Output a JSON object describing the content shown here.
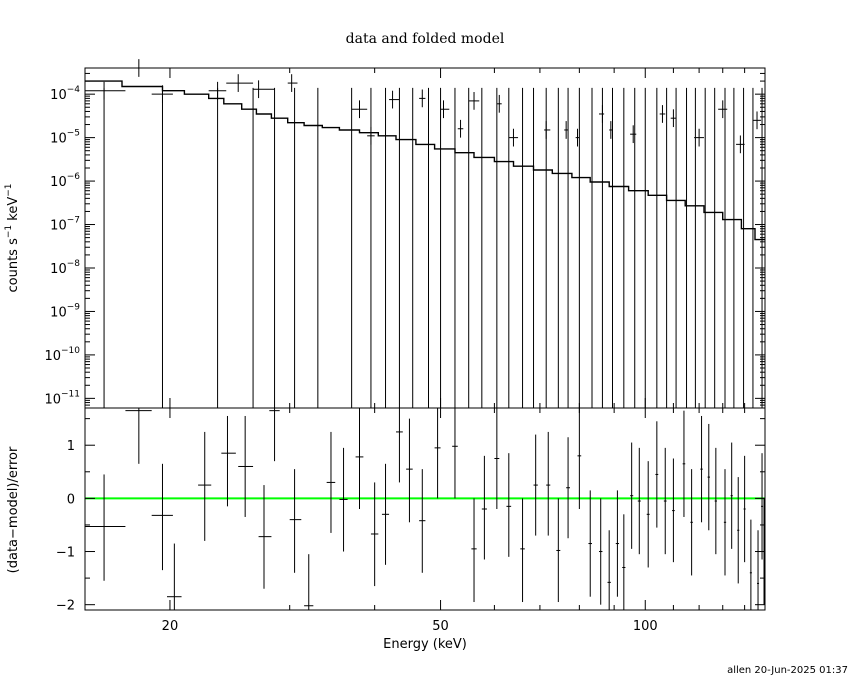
{
  "title": "data and folded model",
  "footer": "allen 20-Jun-2025 01:37",
  "chart_data": [
    {
      "type": "scatter",
      "panel": "top",
      "ylabel_main": "counts s",
      "ylabel_exp1": "−1",
      "ylabel_mid": " keV",
      "ylabel_exp2": "−1",
      "yscale": "log",
      "ylim": [
        6e-12,
        0.0004
      ],
      "xscale": "log",
      "xlim": [
        15,
        150
      ],
      "ytick_labels": [
        {
          "value": 1e-11,
          "mant": "10",
          "exp": "−11"
        },
        {
          "value": 1e-10,
          "mant": "10",
          "exp": "−10"
        },
        {
          "value": 1e-09,
          "mant": "10",
          "exp": "−9"
        },
        {
          "value": 1e-08,
          "mant": "10",
          "exp": "−8"
        },
        {
          "value": 1e-07,
          "mant": "10",
          "exp": "−7"
        },
        {
          "value": 1e-06,
          "mant": "10",
          "exp": "−6"
        },
        {
          "value": 1e-05,
          "mant": "10",
          "exp": "−5"
        },
        {
          "value": 0.0001,
          "mant": "10",
          "exp": "−4"
        }
      ],
      "data_points": [
        {
          "x": 16.0,
          "y": 0.00012,
          "xlo": 15.0,
          "xhi": 17.2
        },
        {
          "x": 18.0,
          "y": 0.0004,
          "xlo": 17.2,
          "xhi": 18.8
        },
        {
          "x": 19.5,
          "y": 0.0001,
          "xlo": 18.8,
          "xhi": 20.2
        },
        {
          "x": 23.5,
          "y": 0.00012,
          "xlo": 22.8,
          "xhi": 24.2
        },
        {
          "x": 25.2,
          "y": 0.00018,
          "xlo": 24.2,
          "xhi": 26.5
        },
        {
          "x": 27.0,
          "y": 0.00013,
          "xlo": 26.5,
          "xhi": 28.5
        },
        {
          "x": 30.2,
          "y": 0.00018,
          "xlo": 29.8,
          "xhi": 30.8
        },
        {
          "x": 38.0,
          "y": 4.5e-05,
          "xlo": 37.0,
          "xhi": 39.0
        },
        {
          "x": 39.5,
          "y": 1.1e-05,
          "xlo": 39.0,
          "xhi": 40.0
        },
        {
          "x": 42.5,
          "y": 7.5e-05,
          "xlo": 42.0,
          "xhi": 43.5
        },
        {
          "x": 47.0,
          "y": 8e-05,
          "xlo": 46.5,
          "xhi": 47.5
        },
        {
          "x": 50.5,
          "y": 4.5e-05,
          "xlo": 50.0,
          "xhi": 51.5
        },
        {
          "x": 53.5,
          "y": 1.6e-05,
          "xlo": 53.0,
          "xhi": 54.0
        },
        {
          "x": 56.0,
          "y": 7e-05,
          "xlo": 55.0,
          "xhi": 57.0
        },
        {
          "x": 61.0,
          "y": 6e-05,
          "xlo": 60.5,
          "xhi": 61.5
        },
        {
          "x": 64.0,
          "y": 1e-05,
          "xlo": 63.0,
          "xhi": 65.0
        },
        {
          "x": 71.5,
          "y": 1.5e-05,
          "xlo": 71.0,
          "xhi": 72.5
        },
        {
          "x": 76.5,
          "y": 1.5e-05,
          "xlo": 76.0,
          "xhi": 77.0
        },
        {
          "x": 79.5,
          "y": 1e-05,
          "xlo": 79.0,
          "xhi": 80.0
        },
        {
          "x": 86.5,
          "y": 3.5e-05,
          "xlo": 85.5,
          "xhi": 87.0
        },
        {
          "x": 89.0,
          "y": 1.5e-05,
          "xlo": 88.5,
          "xhi": 89.5
        },
        {
          "x": 96.0,
          "y": 1.2e-05,
          "xlo": 95.0,
          "xhi": 97.0
        },
        {
          "x": 106.0,
          "y": 3.5e-05,
          "xlo": 105.0,
          "xhi": 107.0
        },
        {
          "x": 110.0,
          "y": 2.8e-05,
          "xlo": 109.0,
          "xhi": 111.0
        },
        {
          "x": 120.0,
          "y": 1e-05,
          "xlo": 118.0,
          "xhi": 122.0
        },
        {
          "x": 130.0,
          "y": 4.5e-05,
          "xlo": 128.0,
          "xhi": 132.0
        },
        {
          "x": 138.0,
          "y": 7e-06,
          "xlo": 136.0,
          "xhi": 140.0
        },
        {
          "x": 146.0,
          "y": 2.5e-05,
          "xlo": 144.0,
          "xhi": 148.0
        }
      ],
      "error_bar_energies": [
        16.0,
        19.5,
        23.5,
        26.5,
        28.5,
        30.5,
        33.0,
        37.0,
        39.5,
        41.5,
        43.5,
        45.5,
        48.0,
        50.0,
        52.5,
        55.0,
        57.5,
        60.5,
        63.0,
        66.0,
        68.5,
        71.5,
        74.5,
        77.0,
        80.0,
        83.5,
        86.5,
        89.5,
        93.0,
        96.5,
        100.0,
        104.0,
        107.5,
        111.0,
        115.0,
        118.5,
        122.5,
        126.5,
        131.0,
        135.0,
        139.5,
        144.0,
        148.5
      ],
      "model_steps": [
        {
          "x0": 15.0,
          "x1": 17.0,
          "y": 0.0002
        },
        {
          "x0": 17.0,
          "x1": 19.5,
          "y": 0.00015
        },
        {
          "x0": 19.5,
          "x1": 21.0,
          "y": 0.00012
        },
        {
          "x0": 21.0,
          "x1": 22.8,
          "y": 0.0001
        },
        {
          "x0": 22.8,
          "x1": 24.0,
          "y": 8e-05
        },
        {
          "x0": 24.0,
          "x1": 25.5,
          "y": 6e-05
        },
        {
          "x0": 25.5,
          "x1": 26.8,
          "y": 4.5e-05
        },
        {
          "x0": 26.8,
          "x1": 28.2,
          "y": 3.5e-05
        },
        {
          "x0": 28.2,
          "x1": 29.8,
          "y": 2.8e-05
        },
        {
          "x0": 29.8,
          "x1": 31.5,
          "y": 2.2e-05
        },
        {
          "x0": 31.5,
          "x1": 33.5,
          "y": 1.9e-05
        },
        {
          "x0": 33.5,
          "x1": 35.5,
          "y": 1.7e-05
        },
        {
          "x0": 35.5,
          "x1": 38.0,
          "y": 1.5e-05
        },
        {
          "x0": 38.0,
          "x1": 40.5,
          "y": 1.3e-05
        },
        {
          "x0": 40.5,
          "x1": 43.0,
          "y": 1.1e-05
        },
        {
          "x0": 43.0,
          "x1": 46.0,
          "y": 9e-06
        },
        {
          "x0": 46.0,
          "x1": 49.0,
          "y": 7e-06
        },
        {
          "x0": 49.0,
          "x1": 52.5,
          "y": 5.5e-06
        },
        {
          "x0": 52.5,
          "x1": 56.0,
          "y": 4.5e-06
        },
        {
          "x0": 56.0,
          "x1": 60.0,
          "y": 3.5e-06
        },
        {
          "x0": 60.0,
          "x1": 64.0,
          "y": 2.8e-06
        },
        {
          "x0": 64.0,
          "x1": 68.5,
          "y": 2.2e-06
        },
        {
          "x0": 68.5,
          "x1": 73.0,
          "y": 1.8e-06
        },
        {
          "x0": 73.0,
          "x1": 78.0,
          "y": 1.5e-06
        },
        {
          "x0": 78.0,
          "x1": 83.0,
          "y": 1.2e-06
        },
        {
          "x0": 83.0,
          "x1": 88.5,
          "y": 9.5e-07
        },
        {
          "x0": 88.5,
          "x1": 94.5,
          "y": 7.5e-07
        },
        {
          "x0": 94.5,
          "x1": 101.0,
          "y": 6e-07
        },
        {
          "x0": 101.0,
          "x1": 107.5,
          "y": 4.7e-07
        },
        {
          "x0": 107.5,
          "x1": 114.5,
          "y": 3.6e-07
        },
        {
          "x0": 114.5,
          "x1": 122.0,
          "y": 2.7e-07
        },
        {
          "x0": 122.0,
          "x1": 130.0,
          "y": 1.9e-07
        },
        {
          "x0": 130.0,
          "x1": 138.5,
          "y": 1.3e-07
        },
        {
          "x0": 138.5,
          "x1": 145.0,
          "y": 8e-08
        },
        {
          "x0": 145.0,
          "x1": 150.0,
          "y": 4.5e-08
        }
      ]
    },
    {
      "type": "scatter",
      "panel": "bottom",
      "xlabel": "Energy (keV)",
      "ylabel": "(data−model)/error",
      "xscale": "log",
      "xlim": [
        15,
        150
      ],
      "ylim": [
        -2.1,
        1.7
      ],
      "xtick_labels": [
        {
          "value": 20,
          "label": "20"
        },
        {
          "value": 50,
          "label": "50"
        },
        {
          "value": 100,
          "label": "100"
        }
      ],
      "ytick_labels": [
        {
          "value": -2,
          "label": "−2"
        },
        {
          "value": -1,
          "label": "−1"
        },
        {
          "value": 0,
          "label": "0"
        },
        {
          "value": 1,
          "label": "1"
        }
      ],
      "zero_line_color": "#00ff00",
      "residuals": [
        {
          "x": 16.0,
          "y": -0.53,
          "xlo": 15.0,
          "xhi": 17.2,
          "ylo": -1.55,
          "yhi": 0.45
        },
        {
          "x": 18.0,
          "y": 1.65,
          "xlo": 17.2,
          "xhi": 18.8,
          "ylo": 0.65,
          "yhi": 1.7
        },
        {
          "x": 19.5,
          "y": -0.32,
          "xlo": 18.8,
          "xhi": 20.2,
          "ylo": -1.35,
          "yhi": 0.65
        },
        {
          "x": 20.3,
          "y": -1.85,
          "xlo": 19.8,
          "xhi": 20.8,
          "ylo": -2.1,
          "yhi": -0.85
        },
        {
          "x": 22.5,
          "y": 0.25,
          "xlo": 22.0,
          "xhi": 23.0,
          "ylo": -0.8,
          "yhi": 1.25
        },
        {
          "x": 24.3,
          "y": 0.85,
          "xlo": 23.8,
          "xhi": 25.0,
          "ylo": -0.15,
          "yhi": 1.55
        },
        {
          "x": 25.8,
          "y": 0.6,
          "xlo": 25.2,
          "xhi": 26.5,
          "ylo": -0.35,
          "yhi": 1.55
        },
        {
          "x": 27.5,
          "y": -0.72,
          "xlo": 27.0,
          "xhi": 28.2,
          "ylo": -1.7,
          "yhi": 0.25
        },
        {
          "x": 28.5,
          "y": 1.65,
          "xlo": 28.0,
          "xhi": 29.0,
          "ylo": 0.7,
          "yhi": 1.7
        },
        {
          "x": 30.5,
          "y": -0.4,
          "xlo": 30.0,
          "xhi": 31.2,
          "ylo": -1.4,
          "yhi": 0.55
        },
        {
          "x": 32.0,
          "y": -2.02,
          "xlo": 31.5,
          "xhi": 32.5,
          "ylo": -2.1,
          "yhi": -1.05
        },
        {
          "x": 34.5,
          "y": 0.3,
          "xlo": 34.0,
          "xhi": 35.0,
          "ylo": -0.65,
          "yhi": 1.25
        },
        {
          "x": 36.0,
          "y": -0.02,
          "xlo": 35.5,
          "xhi": 36.5,
          "ylo": -1.0,
          "yhi": 0.95
        },
        {
          "x": 38.0,
          "y": 0.78,
          "xlo": 37.5,
          "xhi": 38.5,
          "ylo": -0.2,
          "yhi": 1.7
        },
        {
          "x": 40.0,
          "y": -0.67,
          "xlo": 39.5,
          "xhi": 40.5,
          "ylo": -1.65,
          "yhi": 0.3
        },
        {
          "x": 41.5,
          "y": -0.3,
          "xlo": 41.0,
          "xhi": 42.0,
          "ylo": -1.25,
          "yhi": 0.65
        },
        {
          "x": 43.5,
          "y": 1.25,
          "xlo": 43.0,
          "xhi": 44.0,
          "ylo": 0.3,
          "yhi": 1.7
        },
        {
          "x": 45.0,
          "y": 0.55,
          "xlo": 44.5,
          "xhi": 45.5,
          "ylo": -0.45,
          "yhi": 1.5
        },
        {
          "x": 47.0,
          "y": -0.42,
          "xlo": 46.5,
          "xhi": 47.5,
          "ylo": -1.4,
          "yhi": 0.55
        },
        {
          "x": 49.5,
          "y": 0.95,
          "xlo": 49.0,
          "xhi": 50.0,
          "ylo": 0.0,
          "yhi": 1.7
        },
        {
          "x": 52.5,
          "y": 0.98,
          "xlo": 52.0,
          "xhi": 53.0,
          "ylo": 0.0,
          "yhi": 1.7
        },
        {
          "x": 56.0,
          "y": -0.95,
          "xlo": 55.5,
          "xhi": 56.5,
          "ylo": -1.95,
          "yhi": 0.0
        },
        {
          "x": 58.0,
          "y": -0.2,
          "xlo": 57.5,
          "xhi": 58.5,
          "ylo": -1.15,
          "yhi": 0.8
        },
        {
          "x": 60.5,
          "y": 0.75,
          "xlo": 60.0,
          "xhi": 61.0,
          "ylo": -0.2,
          "yhi": 1.7
        },
        {
          "x": 63.0,
          "y": -0.15,
          "xlo": 62.5,
          "xhi": 63.5,
          "ylo": -1.1,
          "yhi": 0.85
        },
        {
          "x": 66.0,
          "y": -0.95,
          "xlo": 65.5,
          "xhi": 66.5,
          "ylo": -1.95,
          "yhi": 0.0
        },
        {
          "x": 69.0,
          "y": 0.25,
          "xlo": 68.5,
          "xhi": 69.5,
          "ylo": -0.7,
          "yhi": 1.2
        },
        {
          "x": 72.0,
          "y": 0.25,
          "xlo": 71.5,
          "xhi": 72.5,
          "ylo": -0.7,
          "yhi": 1.25
        },
        {
          "x": 74.5,
          "y": -0.98,
          "xlo": 74.0,
          "xhi": 75.0,
          "ylo": -1.95,
          "yhi": 0.0
        },
        {
          "x": 77.0,
          "y": 0.2,
          "xlo": 76.5,
          "xhi": 77.5,
          "ylo": -0.75,
          "yhi": 1.15
        },
        {
          "x": 80.0,
          "y": 0.8,
          "xlo": 79.5,
          "xhi": 80.5,
          "ylo": -0.2,
          "yhi": 1.7
        },
        {
          "x": 83.0,
          "y": -0.85,
          "xlo": 82.5,
          "xhi": 83.5,
          "ylo": -1.85,
          "yhi": 0.15
        },
        {
          "x": 86.0,
          "y": -1.0,
          "xlo": 85.5,
          "xhi": 86.5,
          "ylo": -2.0,
          "yhi": 0.0
        },
        {
          "x": 88.5,
          "y": -1.58,
          "xlo": 88.0,
          "xhi": 89.0,
          "ylo": -2.1,
          "yhi": -0.6
        },
        {
          "x": 91.0,
          "y": -0.85,
          "xlo": 90.5,
          "xhi": 91.5,
          "ylo": -1.85,
          "yhi": 0.15
        },
        {
          "x": 93.0,
          "y": -1.3,
          "xlo": 92.5,
          "xhi": 93.5,
          "ylo": -2.1,
          "yhi": -0.3
        },
        {
          "x": 95.5,
          "y": 0.05,
          "xlo": 95.0,
          "xhi": 96.0,
          "ylo": -0.95,
          "yhi": 1.05
        },
        {
          "x": 98.0,
          "y": -0.05,
          "xlo": 97.5,
          "xhi": 98.5,
          "ylo": -1.05,
          "yhi": 0.95
        },
        {
          "x": 101.0,
          "y": -0.3,
          "xlo": 100.5,
          "xhi": 101.5,
          "ylo": -1.3,
          "yhi": 0.7
        },
        {
          "x": 104.0,
          "y": 0.45,
          "xlo": 103.5,
          "xhi": 104.5,
          "ylo": -0.55,
          "yhi": 1.45
        },
        {
          "x": 107.0,
          "y": -0.05,
          "xlo": 106.5,
          "xhi": 107.5,
          "ylo": -1.05,
          "yhi": 0.95
        },
        {
          "x": 110.0,
          "y": -0.23,
          "xlo": 109.5,
          "xhi": 110.5,
          "ylo": -1.2,
          "yhi": 0.75
        },
        {
          "x": 114.0,
          "y": 0.65,
          "xlo": 113.5,
          "xhi": 114.5,
          "ylo": -0.35,
          "yhi": 1.65
        },
        {
          "x": 117.0,
          "y": -0.45,
          "xlo": 116.5,
          "xhi": 117.5,
          "ylo": -1.45,
          "yhi": 0.55
        },
        {
          "x": 121.0,
          "y": 0.55,
          "xlo": 120.5,
          "xhi": 121.5,
          "ylo": -0.45,
          "yhi": 1.55
        },
        {
          "x": 124.0,
          "y": 0.4,
          "xlo": 123.5,
          "xhi": 124.5,
          "ylo": -0.6,
          "yhi": 1.4
        },
        {
          "x": 127.0,
          "y": -0.05,
          "xlo": 126.5,
          "xhi": 127.5,
          "ylo": -1.05,
          "yhi": 0.95
        },
        {
          "x": 131.0,
          "y": -0.45,
          "xlo": 130.5,
          "xhi": 131.5,
          "ylo": -1.45,
          "yhi": 0.55
        },
        {
          "x": 134.0,
          "y": 0.05,
          "xlo": 133.5,
          "xhi": 134.5,
          "ylo": -0.95,
          "yhi": 1.05
        },
        {
          "x": 137.0,
          "y": -0.6,
          "xlo": 136.5,
          "xhi": 137.5,
          "ylo": -1.6,
          "yhi": 0.4
        },
        {
          "x": 140.0,
          "y": -0.2,
          "xlo": 139.5,
          "xhi": 140.5,
          "ylo": -1.2,
          "yhi": 0.8
        },
        {
          "x": 143.0,
          "y": -1.4,
          "xlo": 142.5,
          "xhi": 143.5,
          "ylo": -2.1,
          "yhi": -0.4
        },
        {
          "x": 146.5,
          "y": -1.6,
          "xlo": 146.0,
          "xhi": 147.0,
          "ylo": -2.1,
          "yhi": -0.6
        },
        {
          "x": 148.5,
          "y": -0.15,
          "xlo": 148.0,
          "xhi": 149.0,
          "ylo": -1.15,
          "yhi": 0.85
        },
        {
          "x": 149.5,
          "y": -1.0,
          "xlo": 149.0,
          "xhi": 150.0,
          "ylo": -2.0,
          "yhi": 0.0
        }
      ]
    }
  ]
}
